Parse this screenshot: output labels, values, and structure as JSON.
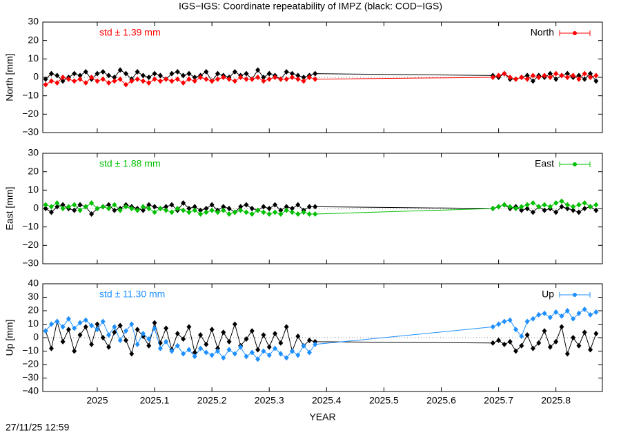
{
  "title": "IGS−IGS: Coordinate repeatability of IMPZ (black: COD−IGS)",
  "timestamp": "27/11/25 12:59",
  "chart_data": [
    {
      "type": "line",
      "ylabel": "North [mm]",
      "legend": "top-right",
      "annotation": {
        "text": "std ± 1.39 mm",
        "color": "#ff0000"
      },
      "xlim": [
        2024.905,
        2025.881
      ],
      "xticks": [
        2025,
        2025.1,
        2025.2,
        2025.3,
        2025.4,
        2025.5,
        2025.6,
        2025.7,
        2025.8
      ],
      "ylim": [
        -30,
        30
      ],
      "yticks": [
        {
          "value": -30,
          "label": "−30"
        },
        {
          "value": -20,
          "label": "−20"
        },
        {
          "value": -10,
          "label": "−10"
        },
        0,
        10,
        20,
        30
      ],
      "x": [
        2024.91,
        2024.92,
        2024.93,
        2024.94,
        2024.95,
        2024.96,
        2024.97,
        2024.98,
        2024.99,
        2025.0,
        2025.01,
        2025.02,
        2025.03,
        2025.04,
        2025.05,
        2025.06,
        2025.07,
        2025.08,
        2025.09,
        2025.1,
        2025.11,
        2025.12,
        2025.13,
        2025.14,
        2025.15,
        2025.16,
        2025.17,
        2025.18,
        2025.19,
        2025.2,
        2025.21,
        2025.22,
        2025.23,
        2025.24,
        2025.25,
        2025.26,
        2025.27,
        2025.28,
        2025.29,
        2025.3,
        2025.31,
        2025.32,
        2025.33,
        2025.34,
        2025.35,
        2025.36,
        2025.37,
        2025.38,
        2025.69,
        2025.7,
        2025.71,
        2025.72,
        2025.73,
        2025.74,
        2025.75,
        2025.76,
        2025.77,
        2025.78,
        2025.79,
        2025.8,
        2025.81,
        2025.82,
        2025.83,
        2025.84,
        2025.85,
        2025.86,
        2025.87
      ],
      "series": [
        {
          "color": "#000000",
          "values": [
            -1,
            2,
            1,
            -2,
            0,
            2,
            1,
            3,
            -1,
            2,
            3,
            1,
            0,
            4,
            2,
            -1,
            3,
            1,
            0,
            2,
            1,
            -1,
            2,
            3,
            1,
            2,
            0,
            1,
            3,
            -2,
            2,
            1,
            0,
            3,
            1,
            2,
            -1,
            4,
            0,
            2,
            1,
            -1,
            3,
            2,
            1,
            0,
            1,
            2,
            1,
            0,
            2,
            -1,
            -1,
            0,
            1,
            -2,
            1,
            0,
            2,
            -1,
            1,
            2,
            0,
            1,
            -1,
            2,
            -2
          ]
        },
        {
          "name": "North",
          "color": "#ff0000",
          "values": [
            -4,
            -2,
            -3,
            0,
            -1,
            -2,
            -1,
            -3,
            0,
            -2,
            -1,
            -3,
            -2,
            -1,
            -4,
            -2,
            -1,
            -2,
            -3,
            -1,
            -2,
            -1,
            -2,
            -1,
            -3,
            -1,
            -2,
            0,
            -1,
            -2,
            -1,
            0,
            -1,
            -2,
            0,
            -1,
            -1,
            0,
            -2,
            -1,
            0,
            -1,
            -1,
            0,
            -1,
            -2,
            0,
            -1,
            0,
            1,
            2,
            0,
            -1,
            0,
            -1,
            1,
            0,
            1,
            0,
            2,
            1,
            0,
            1,
            -1,
            2,
            0,
            1
          ]
        }
      ]
    },
    {
      "type": "line",
      "ylabel": "East [mm]",
      "legend": "top-right",
      "annotation": {
        "text": "std ± 1.88 mm",
        "color": "#00c000"
      },
      "xlim": [
        2024.905,
        2025.881
      ],
      "xticks": [
        2025,
        2025.1,
        2025.2,
        2025.3,
        2025.4,
        2025.5,
        2025.6,
        2025.7,
        2025.8
      ],
      "ylim": [
        -30,
        30
      ],
      "yticks": [
        {
          "value": -30,
          "label": "−30"
        },
        {
          "value": -20,
          "label": "−20"
        },
        {
          "value": -10,
          "label": "−10"
        },
        0,
        10,
        20,
        30
      ],
      "x": [
        2024.91,
        2024.92,
        2024.93,
        2024.94,
        2024.95,
        2024.96,
        2024.97,
        2024.98,
        2024.99,
        2025.0,
        2025.01,
        2025.02,
        2025.03,
        2025.04,
        2025.05,
        2025.06,
        2025.07,
        2025.08,
        2025.09,
        2025.1,
        2025.11,
        2025.12,
        2025.13,
        2025.14,
        2025.15,
        2025.16,
        2025.17,
        2025.18,
        2025.19,
        2025.2,
        2025.21,
        2025.22,
        2025.23,
        2025.24,
        2025.25,
        2025.26,
        2025.27,
        2025.28,
        2025.29,
        2025.3,
        2025.31,
        2025.32,
        2025.33,
        2025.34,
        2025.35,
        2025.36,
        2025.37,
        2025.38,
        2025.69,
        2025.7,
        2025.71,
        2025.72,
        2025.73,
        2025.74,
        2025.75,
        2025.76,
        2025.77,
        2025.78,
        2025.79,
        2025.8,
        2025.81,
        2025.82,
        2025.83,
        2025.84,
        2025.85,
        2025.86,
        2025.87
      ],
      "series": [
        {
          "color": "#000000",
          "values": [
            0,
            -2,
            1,
            2,
            0,
            -1,
            2,
            1,
            -3,
            0,
            1,
            2,
            -1,
            0,
            2,
            1,
            0,
            -1,
            2,
            1,
            0,
            1,
            2,
            -1,
            3,
            0,
            1,
            -1,
            0,
            2,
            -1,
            1,
            0,
            -2,
            1,
            2,
            0,
            -1,
            1,
            0,
            2,
            -1,
            1,
            0,
            2,
            -1,
            1,
            1,
            0,
            1,
            2,
            0,
            1,
            -1,
            0,
            -2,
            1,
            -1,
            0,
            -2,
            1,
            0,
            -1,
            -2,
            0,
            1,
            -1
          ]
        },
        {
          "name": "East",
          "color": "#00c000",
          "values": [
            2,
            1,
            3,
            0,
            1,
            2,
            -1,
            1,
            3,
            0,
            1,
            0,
            2,
            -1,
            1,
            0,
            -1,
            1,
            0,
            -2,
            0,
            -1,
            -2,
            0,
            -1,
            -2,
            -1,
            -3,
            -2,
            -1,
            -2,
            -1,
            -3,
            -2,
            -1,
            -2,
            -3,
            -1,
            -2,
            -3,
            -2,
            -3,
            -1,
            -2,
            -3,
            -2,
            -3,
            -3,
            0,
            1,
            2,
            1,
            0,
            1,
            2,
            3,
            1,
            2,
            1,
            3,
            4,
            2,
            1,
            2,
            3,
            1,
            2
          ]
        }
      ]
    },
    {
      "type": "line",
      "ylabel": "Up [mm]",
      "xlabel": "YEAR",
      "legend": "top-right",
      "annotation": {
        "text": "std ± 11.30 mm",
        "color": "#1e90ff"
      },
      "xlim": [
        2024.905,
        2025.881
      ],
      "xticks": [
        2025,
        2025.1,
        2025.2,
        2025.3,
        2025.4,
        2025.5,
        2025.6,
        2025.7,
        2025.8
      ],
      "ylim": [
        -40,
        40
      ],
      "yticks": [
        {
          "value": -40,
          "label": "−40"
        },
        {
          "value": -30,
          "label": "−30"
        },
        {
          "value": -20,
          "label": "−20"
        },
        {
          "value": -10,
          "label": "−10"
        },
        0,
        10,
        20,
        30,
        40
      ],
      "x": [
        2024.91,
        2024.92,
        2024.93,
        2024.94,
        2024.95,
        2024.96,
        2024.97,
        2024.98,
        2024.99,
        2025.0,
        2025.01,
        2025.02,
        2025.03,
        2025.04,
        2025.05,
        2025.06,
        2025.07,
        2025.08,
        2025.09,
        2025.1,
        2025.11,
        2025.12,
        2025.13,
        2025.14,
        2025.15,
        2025.16,
        2025.17,
        2025.18,
        2025.19,
        2025.2,
        2025.21,
        2025.22,
        2025.23,
        2025.24,
        2025.25,
        2025.26,
        2025.27,
        2025.28,
        2025.29,
        2025.3,
        2025.31,
        2025.32,
        2025.33,
        2025.34,
        2025.35,
        2025.36,
        2025.37,
        2025.38,
        2025.69,
        2025.7,
        2025.71,
        2025.72,
        2025.73,
        2025.74,
        2025.75,
        2025.76,
        2025.77,
        2025.78,
        2025.79,
        2025.8,
        2025.81,
        2025.82,
        2025.83,
        2025.84,
        2025.85,
        2025.86,
        2025.87
      ],
      "series": [
        {
          "color": "#000000",
          "values": [
            5,
            -8,
            12,
            -3,
            6,
            -10,
            2,
            8,
            -5,
            10,
            0,
            -7,
            4,
            9,
            -2,
            -12,
            6,
            1,
            -6,
            11,
            -4,
            7,
            -9,
            3,
            -1,
            8,
            -11,
            2,
            -5,
            6,
            -8,
            4,
            -3,
            10,
            -6,
            -1,
            5,
            -9,
            2,
            -7,
            3,
            -4,
            8,
            -10,
            1,
            -6,
            -2,
            -3,
            -4,
            -2,
            -5,
            -3,
            -10,
            -6,
            2,
            -8,
            -4,
            5,
            -7,
            -3,
            8,
            -12,
            0,
            -6,
            4,
            -9,
            3
          ]
        },
        {
          "name": "Up",
          "color": "#1e90ff",
          "values": [
            5,
            10,
            12,
            8,
            14,
            7,
            11,
            13,
            9,
            6,
            12,
            2,
            8,
            -2,
            5,
            10,
            -5,
            3,
            -1,
            7,
            -8,
            -3,
            -10,
            -6,
            -12,
            -9,
            -14,
            -8,
            -11,
            -13,
            -10,
            -15,
            -9,
            -12,
            -7,
            -14,
            -11,
            -16,
            -10,
            -13,
            -8,
            -12,
            -15,
            -10,
            -13,
            -6,
            -11,
            -5,
            8,
            10,
            12,
            13,
            6,
            1,
            12,
            14,
            17,
            18,
            15,
            19,
            16,
            20,
            14,
            18,
            21,
            17,
            19
          ]
        }
      ]
    }
  ]
}
